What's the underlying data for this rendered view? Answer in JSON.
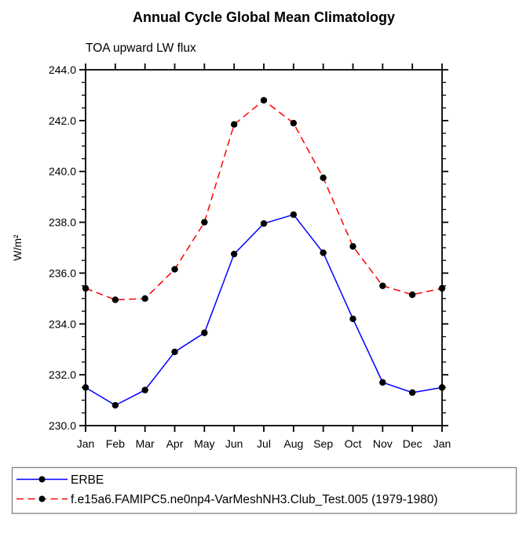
{
  "chart_data": {
    "type": "line",
    "title": "Annual Cycle Global Mean Climatology",
    "subtitle": "TOA upward LW flux",
    "ylabel": "W/m²",
    "categories": [
      "Jan",
      "Feb",
      "Mar",
      "Apr",
      "May",
      "Jun",
      "Jul",
      "Aug",
      "Sep",
      "Oct",
      "Nov",
      "Dec",
      "Jan"
    ],
    "ylim": [
      230.0,
      244.0
    ],
    "ytick_major": 2.0,
    "ytick_minor": 0.5,
    "ytick_labels": [
      "230.0",
      "232.0",
      "234.0",
      "236.0",
      "238.0",
      "240.0",
      "242.0",
      "244.0"
    ],
    "grid": false,
    "legend_position": "bottom-left",
    "marker": "filled-circle",
    "marker_color": "#000000",
    "series": [
      {
        "name": "ERBE",
        "color": "#0000ff",
        "style": "solid",
        "values": [
          231.5,
          230.8,
          231.4,
          232.9,
          233.65,
          236.75,
          237.95,
          238.3,
          236.8,
          234.2,
          231.7,
          231.3,
          231.5
        ]
      },
      {
        "name": "f.e15a6.FAMIPC5.ne0np4-VarMeshNH3.Club_Test.005 (1979-1980)",
        "color": "#ff0000",
        "style": "dashed",
        "values": [
          235.4,
          234.95,
          235.0,
          236.15,
          238.0,
          241.85,
          242.8,
          241.9,
          239.75,
          237.05,
          235.5,
          235.15,
          235.4
        ]
      }
    ]
  }
}
